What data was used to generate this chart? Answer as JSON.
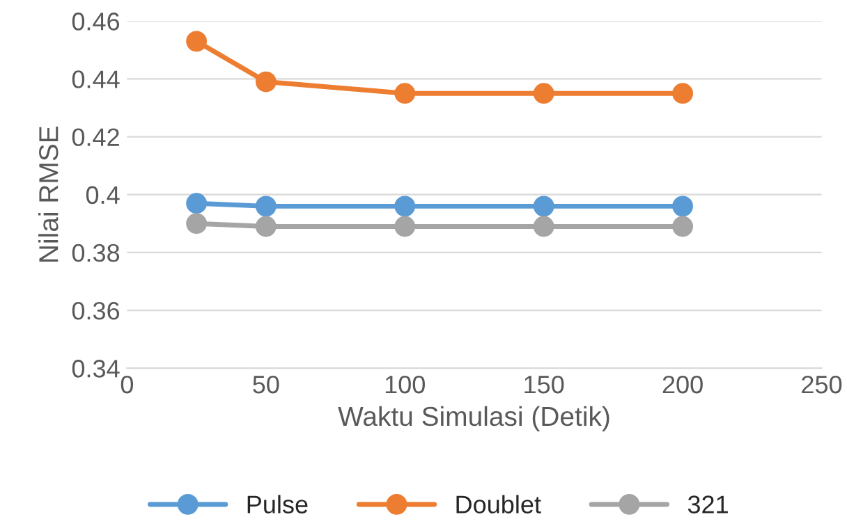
{
  "chart_data": {
    "type": "line",
    "xlabel": "Waktu Simulasi (Detik)",
    "ylabel": "Nilai RMSE",
    "x": [
      25,
      50,
      100,
      150,
      200
    ],
    "series": [
      {
        "name": "Pulse",
        "color": "#5b9bd5",
        "values": [
          0.397,
          0.396,
          0.396,
          0.396,
          0.396
        ]
      },
      {
        "name": "Doublet",
        "color": "#ed7d31",
        "values": [
          0.453,
          0.439,
          0.435,
          0.435,
          0.435
        ]
      },
      {
        "name": "321",
        "color": "#a5a5a5",
        "values": [
          0.39,
          0.389,
          0.389,
          0.389,
          0.389
        ]
      }
    ],
    "xlim": [
      0,
      250
    ],
    "xticks": [
      0,
      50,
      100,
      150,
      200,
      250
    ],
    "ylim": [
      0.34,
      0.46
    ],
    "yticks": [
      {
        "value": 0.34,
        "label": "0.34"
      },
      {
        "value": 0.36,
        "label": "0.36"
      },
      {
        "value": 0.38,
        "label": "0.38"
      },
      {
        "value": 0.4,
        "label": "0.4"
      },
      {
        "value": 0.42,
        "label": "0.42"
      },
      {
        "value": 0.44,
        "label": "0.44"
      },
      {
        "value": 0.46,
        "label": "0.46"
      }
    ],
    "grid": "y",
    "legend": "bottom",
    "marker": "circle",
    "line_style": "solid"
  }
}
